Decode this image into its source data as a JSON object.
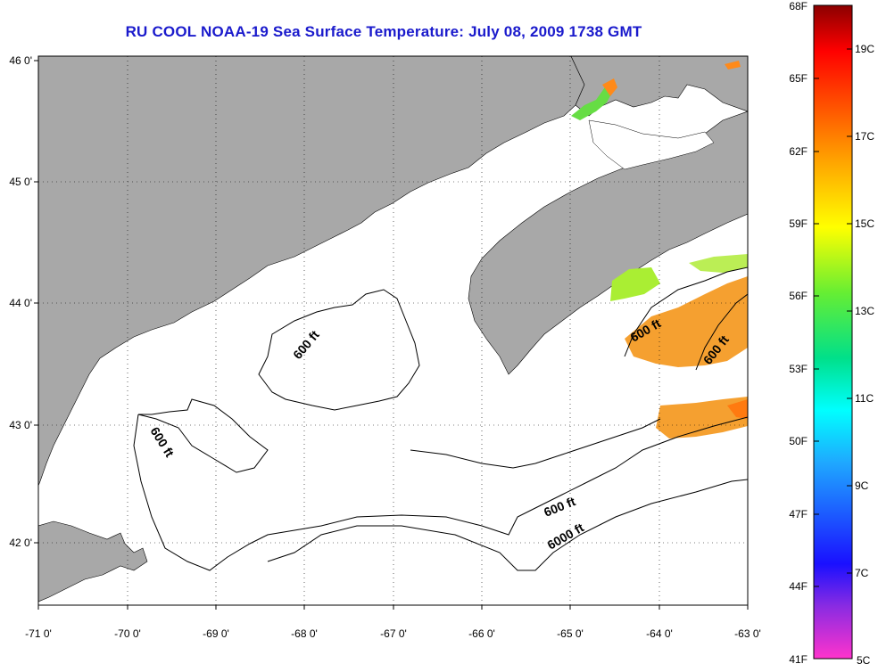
{
  "title": "RU COOL  NOAA-19  Sea Surface Temperature:  July 08, 2009 1738 GMT",
  "x_ticks": [
    "-71 0'",
    "-70 0'",
    "-69 0'",
    "-68 0'",
    "-67 0'",
    "-66 0'",
    "-65 0'",
    "-64 0'",
    "-63 0'"
  ],
  "y_ticks": [
    "46 0'",
    "45 0'",
    "44 0'",
    "43 0'",
    "42 0'"
  ],
  "contour_labels": [
    {
      "text": "600 ft",
      "name": "contour-label-600-north"
    },
    {
      "text": "600 ft",
      "name": "contour-label-600-west"
    },
    {
      "text": "600 ft",
      "name": "contour-label-600-south"
    },
    {
      "text": "6000 ft",
      "name": "contour-label-6000"
    },
    {
      "text": "600 ft",
      "name": "contour-label-600-east-a"
    },
    {
      "text": "600 ft",
      "name": "contour-label-600-east-b"
    }
  ],
  "colorbar": {
    "fahrenheit": [
      "68F",
      "65F",
      "62F",
      "59F",
      "56F",
      "53F",
      "50F",
      "47F",
      "44F",
      "41F"
    ],
    "celsius": [
      "19C",
      "17C",
      "15C",
      "13C",
      "11C",
      "9C",
      "7C",
      "5C"
    ]
  },
  "colors": {
    "land": "#a8a8a8",
    "water": "#ffffff",
    "title": "#1a1acc"
  }
}
